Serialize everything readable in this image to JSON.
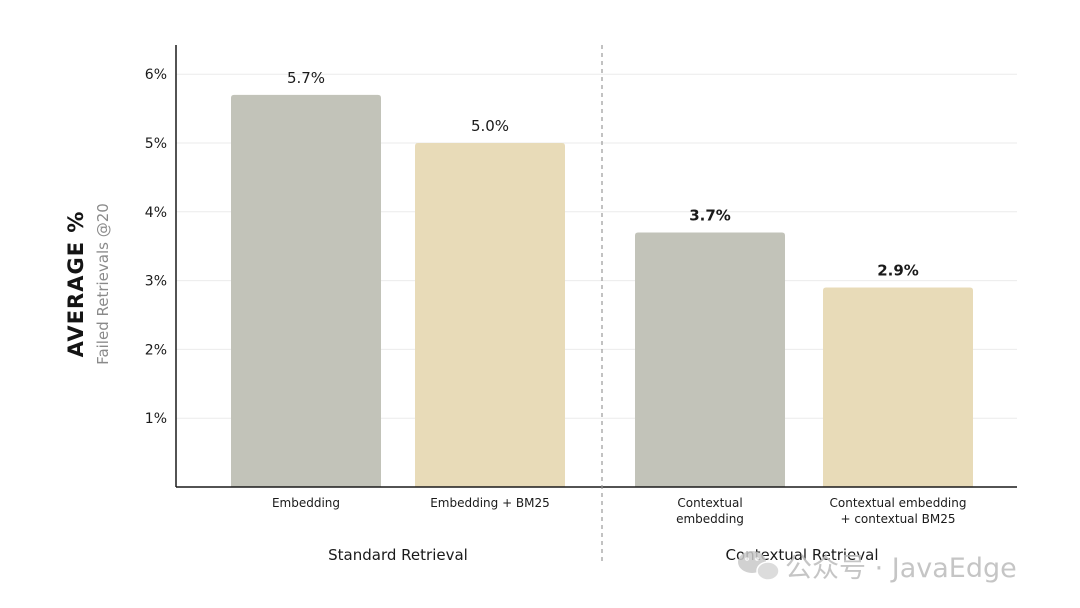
{
  "chart_data": {
    "type": "bar",
    "ylabel": "AVERAGE %",
    "ylabel_sub": "Failed Retrievals @20",
    "yticks": [
      "1%",
      "2%",
      "3%",
      "4%",
      "5%",
      "6%"
    ],
    "ylim": [
      0,
      6.2
    ],
    "grid": true,
    "bars": [
      {
        "category": [
          "Embedding"
        ],
        "value": 5.7,
        "label": "5.7%",
        "group": "Standard Retrieval",
        "color": "#c2c3b9",
        "bold": false
      },
      {
        "category": [
          "Embedding + BM25"
        ],
        "value": 5.0,
        "label": "5.0%",
        "group": "Standard Retrieval",
        "color": "#e8dbb8",
        "bold": false
      },
      {
        "category": [
          "Contextual",
          "embedding"
        ],
        "value": 3.7,
        "label": "3.7%",
        "group": "Contextual Retrieval",
        "color": "#c2c3b9",
        "bold": true
      },
      {
        "category": [
          "Contextual embedding",
          "+ contextual BM25"
        ],
        "value": 2.9,
        "label": "2.9%",
        "group": "Contextual Retrieval",
        "color": "#e8dbb8",
        "bold": true
      }
    ],
    "groups": [
      "Standard Retrieval",
      "Contextual Retrieval"
    ]
  },
  "watermark": {
    "text": "公众号 · JavaEdge",
    "icon": "wechat-icon"
  }
}
